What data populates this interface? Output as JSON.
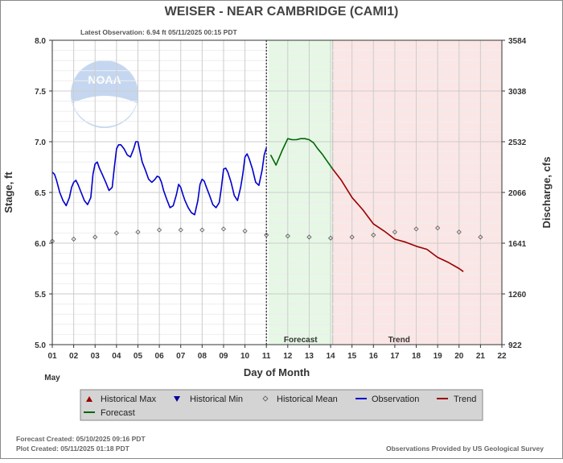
{
  "chart_data": {
    "type": "line",
    "title": "WEISER - NEAR CAMBRIDGE  (CAMI1)",
    "latest_observation": "Latest Observation: 6.94 ft 05/11/2025 00:15 PDT",
    "xlabel": "Day of Month",
    "month_label": "May",
    "ylabel_left": "Stage, ft",
    "ylabel_right": "Discharge, cfs",
    "x_ticks": [
      "01",
      "02",
      "03",
      "04",
      "05",
      "06",
      "07",
      "08",
      "09",
      "10",
      "11",
      "12",
      "13",
      "14",
      "15",
      "16",
      "17",
      "18",
      "19",
      "20",
      "21",
      "22"
    ],
    "xlim": [
      1,
      22
    ],
    "ylim": [
      5.0,
      8.0
    ],
    "y_ticks_left": [
      "5.0",
      "5.5",
      "6.0",
      "6.5",
      "7.0",
      "7.5",
      "8.0"
    ],
    "y_ticks_right": [
      "922",
      "1260",
      "1641",
      "2066",
      "2532",
      "3038",
      "3584"
    ],
    "grid": true,
    "forecast_region": {
      "label": "Forecast",
      "start": 11.1,
      "end": 14.1,
      "color": "#e6f7e6"
    },
    "trend_region": {
      "label": "Trend",
      "start": 14.1,
      "end": 22,
      "color": "#fbe6e6"
    },
    "current_time": 11.0,
    "series": [
      {
        "name": "Observation",
        "color": "#0000cc",
        "x": [
          1.0,
          1.1,
          1.2,
          1.35,
          1.5,
          1.65,
          1.8,
          1.9,
          2.0,
          2.1,
          2.2,
          2.35,
          2.5,
          2.65,
          2.8,
          2.9,
          3.0,
          3.1,
          3.2,
          3.35,
          3.5,
          3.65,
          3.8,
          3.9,
          4.0,
          4.1,
          4.2,
          4.35,
          4.5,
          4.65,
          4.8,
          4.9,
          5.0,
          5.1,
          5.2,
          5.35,
          5.5,
          5.65,
          5.8,
          5.9,
          6.0,
          6.1,
          6.2,
          6.35,
          6.5,
          6.65,
          6.8,
          6.9,
          7.0,
          7.1,
          7.2,
          7.35,
          7.5,
          7.65,
          7.8,
          7.9,
          8.0,
          8.1,
          8.2,
          8.35,
          8.5,
          8.65,
          8.8,
          8.9,
          9.0,
          9.1,
          9.2,
          9.35,
          9.5,
          9.65,
          9.8,
          9.9,
          10.0,
          10.1,
          10.2,
          10.35,
          10.5,
          10.65,
          10.8,
          10.9,
          11.0
        ],
        "y": [
          6.7,
          6.68,
          6.62,
          6.5,
          6.42,
          6.37,
          6.45,
          6.55,
          6.6,
          6.62,
          6.58,
          6.5,
          6.42,
          6.38,
          6.45,
          6.68,
          6.78,
          6.8,
          6.74,
          6.67,
          6.6,
          6.52,
          6.55,
          6.75,
          6.93,
          6.97,
          6.97,
          6.93,
          6.87,
          6.85,
          6.93,
          7.0,
          7.0,
          6.9,
          6.8,
          6.72,
          6.63,
          6.6,
          6.63,
          6.66,
          6.65,
          6.6,
          6.52,
          6.43,
          6.35,
          6.37,
          6.48,
          6.58,
          6.55,
          6.48,
          6.42,
          6.35,
          6.3,
          6.28,
          6.42,
          6.58,
          6.63,
          6.61,
          6.55,
          6.47,
          6.38,
          6.35,
          6.4,
          6.55,
          6.73,
          6.74,
          6.7,
          6.6,
          6.47,
          6.42,
          6.55,
          6.68,
          6.85,
          6.88,
          6.83,
          6.73,
          6.6,
          6.57,
          6.72,
          6.87,
          6.94
        ]
      },
      {
        "name": "Forecast",
        "color": "#006600",
        "x": [
          11.2,
          11.45,
          11.75,
          12.0,
          12.2,
          12.4,
          12.6,
          12.8,
          13.0,
          13.2,
          13.4,
          13.6,
          13.8,
          14.0,
          14.1
        ],
        "y": [
          6.87,
          6.77,
          6.92,
          7.03,
          7.02,
          7.02,
          7.03,
          7.03,
          7.02,
          6.99,
          6.93,
          6.88,
          6.82,
          6.76,
          6.73
        ]
      },
      {
        "name": "Trend",
        "color": "#990000",
        "x": [
          14.1,
          14.5,
          15.0,
          15.5,
          16.0,
          16.5,
          17.0,
          17.5,
          18.0,
          18.5,
          19.0,
          19.5,
          20.0,
          20.2
        ],
        "y": [
          6.73,
          6.62,
          6.45,
          6.33,
          6.19,
          6.12,
          6.04,
          6.01,
          5.97,
          5.94,
          5.86,
          5.81,
          5.75,
          5.72
        ]
      },
      {
        "name": "Historical Mean",
        "color": "#555555",
        "x": [
          1,
          2,
          3,
          4,
          5,
          6,
          7,
          8,
          9,
          10,
          11,
          12,
          13,
          14,
          15,
          16,
          17,
          18,
          19,
          20,
          21
        ],
        "y": [
          6.02,
          6.04,
          6.06,
          6.1,
          6.11,
          6.13,
          6.13,
          6.13,
          6.14,
          6.12,
          6.08,
          6.07,
          6.06,
          6.05,
          6.06,
          6.08,
          6.11,
          6.14,
          6.15,
          6.11,
          6.06
        ]
      }
    ]
  },
  "legend": {
    "items": [
      {
        "key": "hist_max",
        "label": "Historical Max",
        "color": "#990000"
      },
      {
        "key": "hist_min",
        "label": "Historical Min",
        "color": "#000099"
      },
      {
        "key": "hist_mean",
        "label": "Historical Mean",
        "color": "#555555"
      },
      {
        "key": "observation",
        "label": "Observation",
        "color": "#0000cc"
      },
      {
        "key": "trend",
        "label": "Trend",
        "color": "#990000"
      },
      {
        "key": "forecast",
        "label": "Forecast",
        "color": "#006600"
      }
    ]
  },
  "footer": {
    "forecast_created": "Forecast Created: 05/10/2025 09:16 PDT",
    "plot_created": "Plot Created: 05/11/2025 01:18 PDT",
    "credit": "Observations Provided by US Geological Survey"
  },
  "logo": {
    "text": "NOAA"
  }
}
